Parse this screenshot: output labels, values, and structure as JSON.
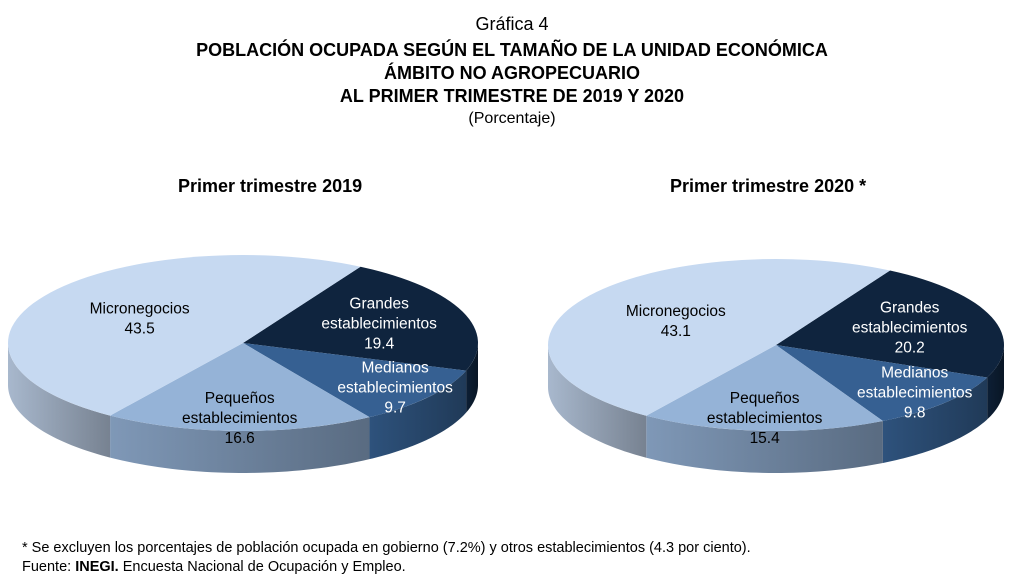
{
  "header": {
    "label": "Gráfica 4",
    "title_line1": "POBLACIÓN OCUPADA SEGÚN EL TAMAÑO DE LA UNIDAD ECONÓMICA",
    "title_line2": "ÁMBITO NO AGROPECUARIO",
    "title_line3": "AL PRIMER TRIMESTRE DE 2019 Y 2020",
    "unit": "(Porcentaje)"
  },
  "chart_data": [
    {
      "type": "pie",
      "title": "Primer trimestre  2019",
      "slices": [
        {
          "label": "Grandes establecimientos",
          "value": 19.4,
          "color": "#0f243e"
        },
        {
          "label": "Medianos establecimientos",
          "value": 9.7,
          "color": "#366092"
        },
        {
          "label": "Pequeños establecimientos",
          "value": 16.6,
          "color": "#95b3d7"
        },
        {
          "label": "Micronegocios",
          "value": 43.5,
          "color": "#c6d9f1"
        }
      ]
    },
    {
      "type": "pie",
      "title": "Primer trimestre  2020 *",
      "slices": [
        {
          "label": "Grandes establecimientos",
          "value": 20.2,
          "color": "#0f243e"
        },
        {
          "label": "Medianos establecimientos",
          "value": 9.8,
          "color": "#366092"
        },
        {
          "label": "Pequeños establecimientos",
          "value": 15.4,
          "color": "#95b3d7"
        },
        {
          "label": "Micronegocios",
          "value": 43.1,
          "color": "#c6d9f1"
        }
      ]
    }
  ],
  "footer": {
    "note": "* Se excluyen los porcentajes de población ocupada en gobierno (7.2%) y otros establecimientos (4.3 por ciento).",
    "source_label": "Fuente:",
    "source_org": "INEGI.",
    "source_text": "Encuesta Nacional de Ocupación y Empleo."
  }
}
